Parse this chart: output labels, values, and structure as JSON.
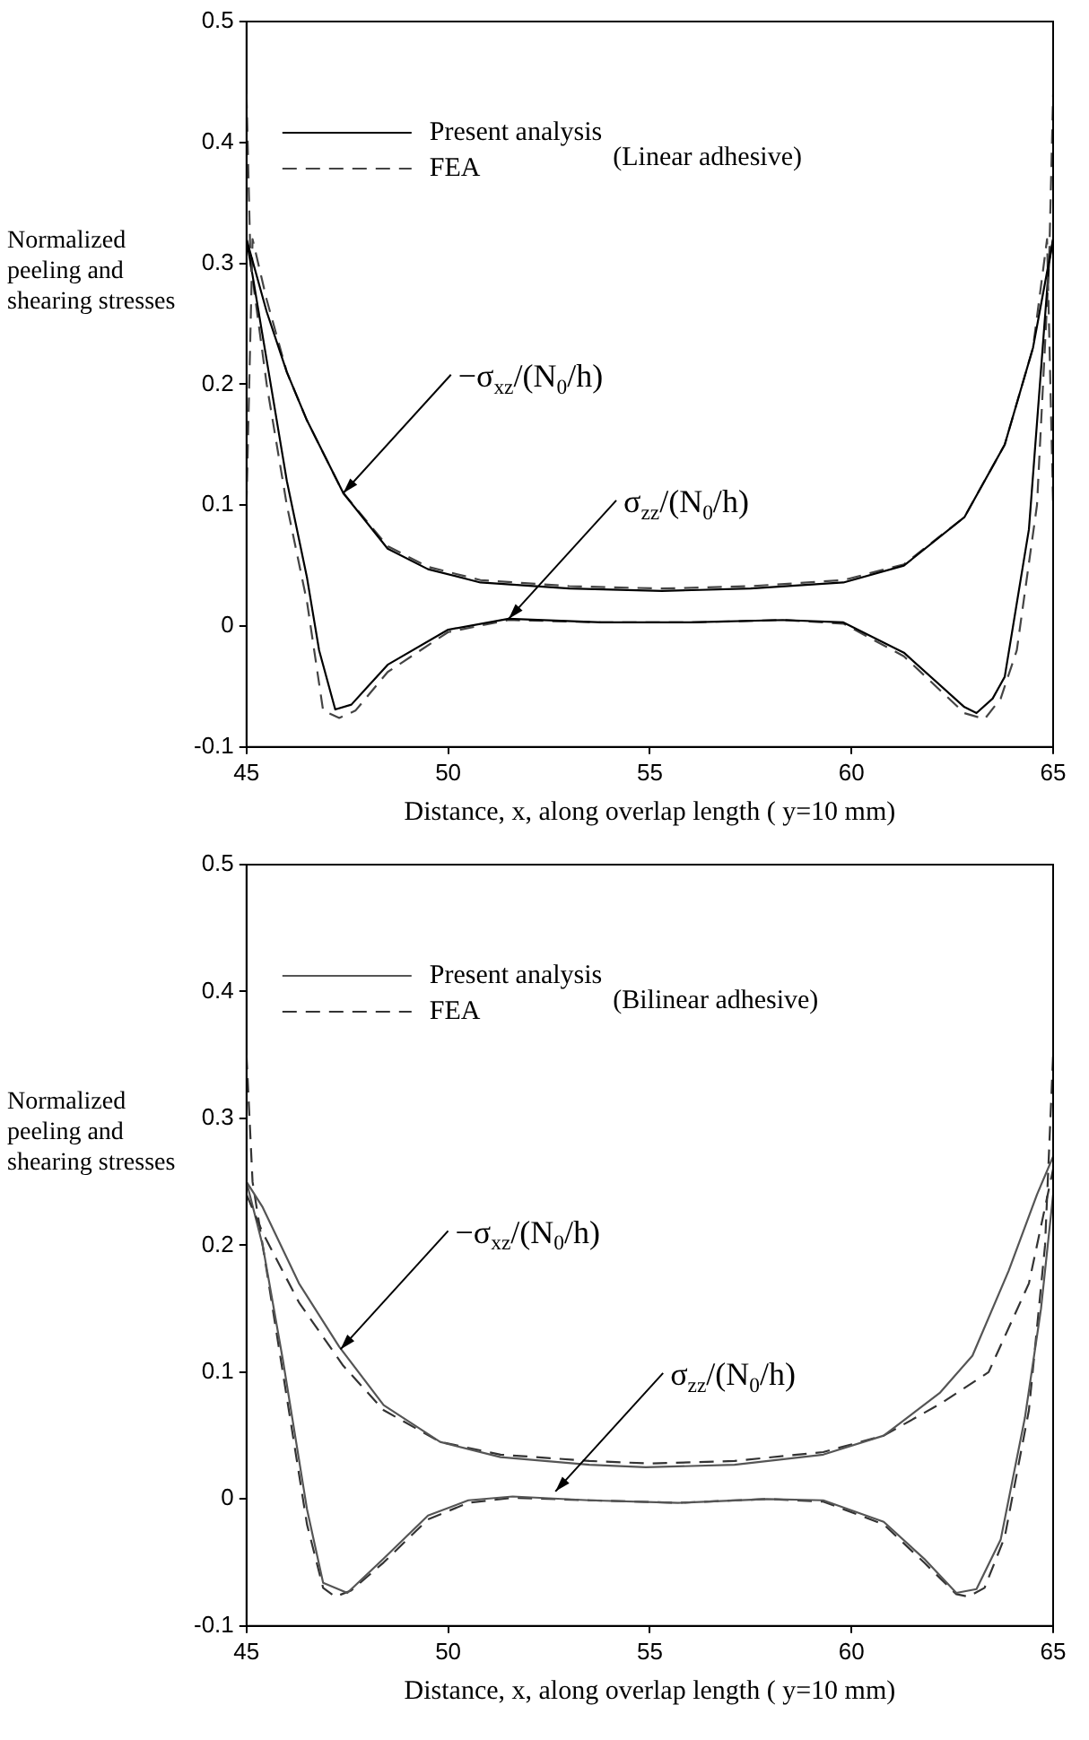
{
  "chart_data": [
    {
      "type": "line",
      "xlabel": "Distance, x, along overlap length ( y=10 mm)",
      "ylabel": "Normalized peeling and shearing stresses",
      "xlim": [
        45,
        65
      ],
      "xticks": [
        45,
        50,
        55,
        60,
        65
      ],
      "ylim": [
        -0.1,
        0.5
      ],
      "yticks": [
        -0.1,
        0,
        0.1,
        0.2,
        0.3,
        0.4,
        0.5
      ],
      "grid": false,
      "legend": "top left",
      "annotations": [
        "(Linear adhesive)",
        {
          "text": "−σ$_{xz}$/(N$_{0}$/h)",
          "x": 47.4,
          "y": 0.11
        },
        {
          "text": "σ$_{zz}$/(N$_{0}$/h)",
          "x": 51.5,
          "y": 0.006
        }
      ],
      "series": [
        {
          "name": "Present analysis",
          "color": "#000000",
          "line_style": "solid",
          "x": [
            45,
            45.5,
            46,
            46.5,
            47.4,
            48.5,
            49.5,
            50.8,
            53,
            55.3,
            57.5,
            59.8,
            61.3,
            62.8,
            63.8,
            64.5,
            65
          ],
          "values": [
            0.32,
            0.26,
            0.21,
            0.17,
            0.11,
            0.064,
            0.047,
            0.036,
            0.031,
            0.029,
            0.031,
            0.036,
            0.05,
            0.09,
            0.15,
            0.23,
            0.32
          ]
        },
        {
          "name": "FEA",
          "color": "#444444",
          "line_style": "dashed",
          "x": [
            45,
            45.15,
            45.5,
            46,
            46.5,
            47.4,
            48.5,
            49.5,
            50.8,
            53,
            55.3,
            57.5,
            59.8,
            61.3,
            62.8,
            63.8,
            64.5,
            64.85,
            65
          ],
          "values": [
            0.1,
            0.32,
            0.27,
            0.21,
            0.17,
            0.11,
            0.066,
            0.049,
            0.038,
            0.033,
            0.031,
            0.033,
            0.038,
            0.051,
            0.09,
            0.15,
            0.23,
            0.32,
            0.1
          ]
        },
        {
          "color": "#000000",
          "line_style": "solid",
          "x": [
            45,
            45.5,
            46,
            46.5,
            46.8,
            47.2,
            47.6,
            48.5,
            50,
            51.5,
            53.8,
            56,
            58.3,
            59.8,
            61.3,
            62.8,
            63.1,
            63.5,
            63.8,
            64.4,
            64.9,
            65
          ],
          "values": [
            0.32,
            0.22,
            0.12,
            0.04,
            -0.02,
            -0.069,
            -0.065,
            -0.032,
            -0.003,
            0.006,
            0.003,
            0.003,
            0.005,
            0.003,
            -0.022,
            -0.067,
            -0.072,
            -0.06,
            -0.042,
            0.08,
            0.3,
            0.32
          ]
        },
        {
          "color": "#444444",
          "line_style": "dashed",
          "x": [
            45,
            45.1,
            45.5,
            46,
            46.5,
            46.9,
            47.3,
            47.7,
            48.5,
            50,
            51.5,
            53.8,
            56,
            58.3,
            59.8,
            61.3,
            62.8,
            63.3,
            63.7,
            64.1,
            64.6,
            64.9,
            65
          ],
          "values": [
            0.44,
            0.3,
            0.2,
            0.1,
            0.02,
            -0.07,
            -0.076,
            -0.07,
            -0.038,
            -0.005,
            0.005,
            0.003,
            0.003,
            0.005,
            0.002,
            -0.025,
            -0.072,
            -0.077,
            -0.06,
            -0.02,
            0.1,
            0.3,
            0.44
          ]
        }
      ]
    },
    {
      "type": "line",
      "xlabel": "Distance, x, along overlap length ( y=10 mm)",
      "ylabel": "Normalized peeling and shearing stresses",
      "xlim": [
        45,
        65
      ],
      "xticks": [
        45,
        50,
        55,
        60,
        65
      ],
      "ylim": [
        -0.1,
        0.5
      ],
      "yticks": [
        -0.1,
        0,
        0.1,
        0.2,
        0.3,
        0.4,
        0.5
      ],
      "grid": false,
      "legend": "top left",
      "annotations": [
        "(Bilinear adhesive)",
        {
          "text": "−σ$_{xz}$/(N$_{0}$/h)",
          "x": 47.33,
          "y": 0.118
        },
        {
          "text": "σ$_{zz}$/(N$_{0}$/h)",
          "x": 52.66,
          "y": 0.006
        }
      ],
      "series": [
        {
          "name": "Present analysis",
          "color": "#555555",
          "line_style": "solid",
          "x": [
            45,
            45.4,
            46.3,
            47.3,
            48.4,
            49.8,
            51.3,
            53.5,
            54.9,
            57.1,
            59.3,
            60.8,
            62.2,
            63,
            63.9,
            64.6,
            65
          ],
          "values": [
            0.25,
            0.23,
            0.17,
            0.12,
            0.074,
            0.045,
            0.033,
            0.027,
            0.025,
            0.027,
            0.035,
            0.05,
            0.084,
            0.113,
            0.18,
            0.24,
            0.27
          ]
        },
        {
          "name": "FEA",
          "color": "#333333",
          "line_style": "dashed",
          "x": [
            45,
            45.4,
            46.3,
            47.4,
            48.4,
            49.8,
            51.3,
            53.5,
            55,
            57.1,
            59.3,
            60.8,
            62.2,
            63.4,
            64.4,
            65
          ],
          "values": [
            0.24,
            0.21,
            0.155,
            0.105,
            0.07,
            0.045,
            0.035,
            0.03,
            0.028,
            0.03,
            0.037,
            0.05,
            0.075,
            0.1,
            0.17,
            0.26
          ]
        },
        {
          "color": "#555555",
          "line_style": "solid",
          "x": [
            45,
            45.4,
            45.9,
            46.5,
            46.9,
            47.5,
            48.4,
            49.5,
            50.5,
            51.6,
            53.5,
            55.7,
            57.9,
            59.3,
            60.8,
            61.8,
            62.6,
            63.1,
            63.7,
            64.3,
            64.7,
            65
          ],
          "values": [
            0.25,
            0.2,
            0.11,
            -0.008,
            -0.066,
            -0.074,
            -0.047,
            -0.013,
            -0.001,
            0.002,
            -0.001,
            -0.003,
            0,
            -0.001,
            -0.018,
            -0.047,
            -0.074,
            -0.071,
            -0.032,
            0.064,
            0.15,
            0.24
          ]
        },
        {
          "color": "#333333",
          "line_style": "dashed",
          "x": [
            45,
            45.15,
            45.5,
            46,
            46.5,
            46.9,
            47.2,
            47.6,
            48.4,
            49.5,
            50.5,
            51.6,
            53.5,
            55.7,
            57.9,
            59.3,
            60.8,
            61.8,
            62.6,
            62.9,
            63.3,
            63.8,
            64.4,
            64.8,
            65
          ],
          "values": [
            0.35,
            0.25,
            0.18,
            0.08,
            -0.02,
            -0.07,
            -0.077,
            -0.072,
            -0.05,
            -0.016,
            -0.003,
            0.001,
            -0.001,
            -0.003,
            0,
            -0.002,
            -0.02,
            -0.05,
            -0.075,
            -0.077,
            -0.07,
            -0.03,
            0.07,
            0.2,
            0.35
          ]
        }
      ]
    }
  ]
}
